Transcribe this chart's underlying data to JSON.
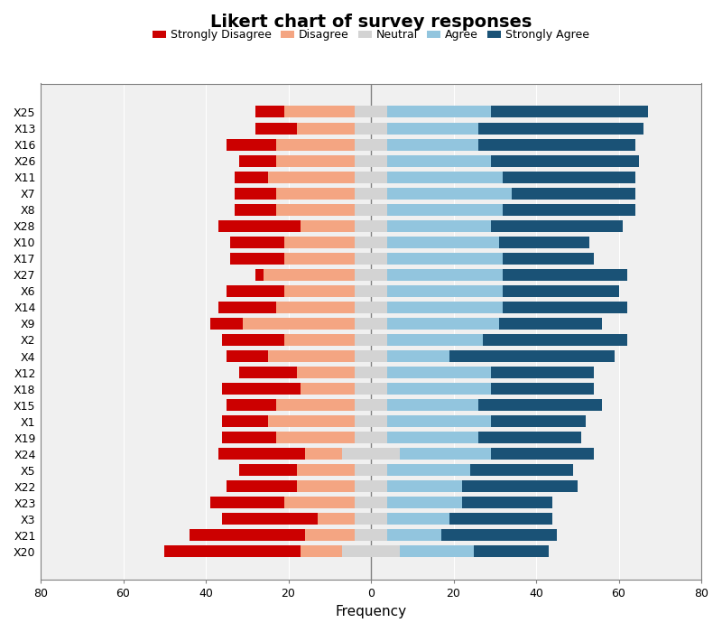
{
  "title": "Likert chart of survey responses",
  "xlabel": "Frequency",
  "categories": [
    "X25",
    "X13",
    "X16",
    "X26",
    "X11",
    "X7",
    "X8",
    "X28",
    "X10",
    "X17",
    "X27",
    "X6",
    "X14",
    "X9",
    "X2",
    "X4",
    "X12",
    "X18",
    "X15",
    "X1",
    "X19",
    "X24",
    "X5",
    "X22",
    "X23",
    "X3",
    "X21",
    "X20"
  ],
  "strongly_disagree": [
    7,
    10,
    12,
    9,
    8,
    10,
    10,
    20,
    13,
    13,
    2,
    14,
    14,
    8,
    15,
    10,
    14,
    19,
    12,
    11,
    13,
    21,
    14,
    17,
    18,
    23,
    28,
    33
  ],
  "disagree": [
    17,
    14,
    19,
    19,
    21,
    19,
    19,
    13,
    17,
    17,
    22,
    17,
    19,
    27,
    17,
    21,
    14,
    13,
    19,
    21,
    19,
    9,
    14,
    14,
    17,
    9,
    12,
    10
  ],
  "neutral": [
    8,
    8,
    8,
    8,
    8,
    8,
    8,
    8,
    8,
    8,
    8,
    8,
    8,
    8,
    8,
    8,
    8,
    8,
    8,
    8,
    8,
    14,
    8,
    8,
    8,
    8,
    8,
    14
  ],
  "agree": [
    25,
    22,
    22,
    25,
    28,
    30,
    28,
    25,
    27,
    28,
    28,
    28,
    28,
    27,
    23,
    15,
    25,
    25,
    22,
    25,
    22,
    22,
    20,
    18,
    18,
    15,
    13,
    18
  ],
  "strongly_agree": [
    38,
    40,
    38,
    36,
    32,
    30,
    32,
    32,
    22,
    22,
    30,
    28,
    30,
    25,
    35,
    40,
    25,
    25,
    30,
    23,
    25,
    25,
    25,
    28,
    22,
    25,
    28,
    18
  ],
  "colors": {
    "strongly_disagree": "#cc0000",
    "disagree": "#f4a582",
    "neutral": "#d3d3d3",
    "agree": "#92c5de",
    "strongly_agree": "#1a5276"
  },
  "xlim": [
    -80,
    80
  ],
  "xticks": [
    -80,
    -60,
    -40,
    -20,
    0,
    20,
    40,
    60,
    80
  ],
  "xticklabels": [
    "80",
    "60",
    "40",
    "20",
    "0",
    "20",
    "40",
    "60",
    "80"
  ],
  "background_color": "#e8e8e8",
  "plot_bg_color": "#f0f0f0",
  "title_fontsize": 14,
  "legend_fontsize": 9,
  "tick_fontsize": 9
}
